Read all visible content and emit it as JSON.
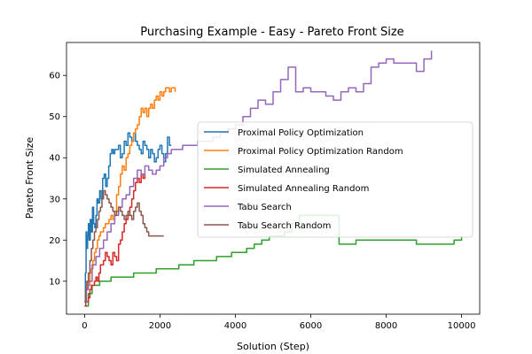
{
  "chart_data": {
    "type": "line",
    "title": "Purchasing Example - Easy - Pareto Front Size",
    "xlabel": "Solution (Step)",
    "ylabel": "Pareto Front Size",
    "xlim": [
      -480,
      10480
    ],
    "ylim": [
      2,
      68
    ],
    "xticks": [
      0,
      2000,
      4000,
      6000,
      8000,
      10000
    ],
    "yticks": [
      10,
      20,
      30,
      40,
      50,
      60
    ],
    "grid": false,
    "legend": "center-right",
    "series": [
      {
        "name": "Proximal Policy Optimization",
        "color": "#1f77b4",
        "x": [
          0,
          20,
          40,
          60,
          80,
          100,
          120,
          150,
          180,
          210,
          240,
          270,
          300,
          330,
          360,
          400,
          440,
          480,
          520,
          560,
          600,
          640,
          680,
          720,
          760,
          800,
          850,
          900,
          950,
          1000,
          1050,
          1100,
          1150,
          1200,
          1250,
          1300,
          1350,
          1400,
          1450,
          1500,
          1550,
          1600,
          1650,
          1700,
          1750,
          1800,
          1850,
          1900,
          1950,
          2000,
          2050,
          2100,
          2150,
          2200,
          2250,
          2300
        ],
        "y": [
          5,
          12,
          22,
          18,
          21,
          24,
          20,
          25,
          22,
          28,
          24,
          23,
          26,
          30,
          29,
          32,
          30,
          35,
          36,
          33,
          35,
          38,
          41,
          42,
          41,
          42,
          42,
          43,
          40,
          41,
          44,
          43,
          46,
          45,
          44,
          46,
          44,
          43,
          42,
          41,
          44,
          43,
          42,
          40,
          42,
          41,
          39,
          40,
          42,
          43,
          41,
          39,
          41,
          45,
          43,
          43
        ]
      },
      {
        "name": "Proximal Policy Optimization Random",
        "color": "#ff7f0e",
        "x": [
          0,
          30,
          60,
          100,
          140,
          180,
          220,
          260,
          300,
          340,
          380,
          420,
          460,
          500,
          550,
          600,
          650,
          700,
          750,
          800,
          850,
          900,
          950,
          1000,
          1050,
          1100,
          1150,
          1200,
          1250,
          1300,
          1350,
          1400,
          1450,
          1500,
          1550,
          1600,
          1650,
          1700,
          1750,
          1800,
          1850,
          1900,
          1950,
          2000,
          2050,
          2100,
          2150,
          2200,
          2250,
          2300,
          2350,
          2400
        ],
        "y": [
          5,
          8,
          10,
          9,
          12,
          13,
          15,
          17,
          18,
          20,
          21,
          22,
          22,
          23,
          24,
          24,
          25,
          26,
          25,
          27,
          31,
          33,
          36,
          38,
          37,
          40,
          41,
          43,
          44,
          46,
          47,
          48,
          50,
          52,
          51,
          52,
          50,
          52,
          53,
          52,
          54,
          55,
          54,
          56,
          55,
          56,
          57,
          57,
          56,
          57,
          57,
          56
        ]
      },
      {
        "name": "Simulated Annealing",
        "color": "#2ca02c",
        "x": [
          0,
          100,
          200,
          300,
          400,
          500,
          700,
          900,
          1100,
          1300,
          1500,
          1700,
          1900,
          2100,
          2300,
          2500,
          2700,
          2900,
          3100,
          3300,
          3500,
          3700,
          3900,
          4100,
          4300,
          4500,
          4700,
          4900,
          5100,
          5300,
          5500,
          5700,
          5900,
          6100,
          6300,
          6500,
          6700,
          6750,
          6800,
          7000,
          7200,
          7400,
          7600,
          7800,
          8000,
          8200,
          8400,
          8600,
          8800,
          9000,
          9200,
          9400,
          9600,
          9800,
          10000
        ],
        "y": [
          4,
          7,
          9,
          9,
          10,
          10,
          11,
          11,
          11,
          12,
          12,
          12,
          13,
          13,
          13,
          14,
          14,
          15,
          15,
          15,
          16,
          16,
          17,
          17,
          18,
          19,
          20,
          21,
          21,
          22,
          24,
          26,
          26,
          26,
          26,
          26,
          26,
          19,
          19,
          19,
          20,
          20,
          20,
          20,
          20,
          20,
          20,
          20,
          19,
          19,
          19,
          19,
          19,
          20,
          21
        ]
      },
      {
        "name": "Simulated Annealing Random",
        "color": "#d62728",
        "x": [
          0,
          30,
          60,
          100,
          140,
          180,
          220,
          260,
          300,
          340,
          380,
          420,
          460,
          500,
          550,
          600,
          650,
          700,
          750,
          800,
          850,
          900,
          950,
          1000,
          1050,
          1100,
          1150,
          1200,
          1250,
          1300,
          1350,
          1400,
          1450,
          1500,
          1550,
          1600
        ],
        "y": [
          4,
          5,
          5,
          6,
          8,
          9,
          9,
          10,
          11,
          10,
          12,
          14,
          14,
          15,
          17,
          16,
          15,
          14,
          17,
          16,
          15,
          19,
          20,
          22,
          24,
          25,
          26,
          28,
          30,
          32,
          34,
          35,
          34,
          36,
          35,
          36
        ]
      },
      {
        "name": "Tabu Search",
        "color": "#9467bd",
        "x": [
          0,
          50,
          100,
          200,
          300,
          400,
          500,
          600,
          700,
          800,
          900,
          1000,
          1100,
          1200,
          1300,
          1400,
          1500,
          1600,
          1700,
          1800,
          1900,
          2000,
          2100,
          2200,
          2300,
          2400,
          2600,
          2800,
          3000,
          3200,
          3400,
          3600,
          3800,
          4000,
          4200,
          4400,
          4600,
          4800,
          5000,
          5200,
          5400,
          5600,
          5800,
          6000,
          6200,
          6400,
          6600,
          6800,
          7000,
          7200,
          7400,
          7600,
          7800,
          8000,
          8200,
          8400,
          8600,
          8800,
          9000,
          9200
        ],
        "y": [
          5,
          8,
          10,
          14,
          16,
          18,
          20,
          22,
          24,
          26,
          28,
          30,
          31,
          33,
          35,
          37,
          36,
          38,
          37,
          36,
          37,
          38,
          40,
          41,
          42,
          42,
          43,
          43,
          44,
          44,
          45,
          46,
          47,
          48,
          50,
          52,
          54,
          53,
          56,
          59,
          62,
          56,
          57,
          56,
          56,
          55,
          54,
          56,
          57,
          56,
          58,
          62,
          63,
          64,
          63,
          63,
          63,
          61,
          64,
          66
        ]
      },
      {
        "name": "Tabu Search Random",
        "color": "#8c564b",
        "x": [
          0,
          30,
          60,
          100,
          140,
          180,
          220,
          260,
          300,
          340,
          380,
          420,
          460,
          500,
          550,
          600,
          650,
          700,
          750,
          800,
          850,
          900,
          950,
          1000,
          1050,
          1100,
          1150,
          1200,
          1250,
          1300,
          1350,
          1400,
          1450,
          1500,
          1550,
          1600,
          1650,
          1700,
          1750,
          1800,
          1900,
          2000,
          2100
        ],
        "y": [
          5,
          8,
          10,
          12,
          15,
          18,
          20,
          22,
          23,
          25,
          27,
          28,
          30,
          32,
          31,
          30,
          29,
          28,
          27,
          26,
          27,
          28,
          27,
          26,
          25,
          26,
          27,
          26,
          25,
          27,
          28,
          29,
          27,
          26,
          24,
          23,
          22,
          21,
          21,
          21,
          21,
          21,
          21
        ]
      }
    ]
  }
}
